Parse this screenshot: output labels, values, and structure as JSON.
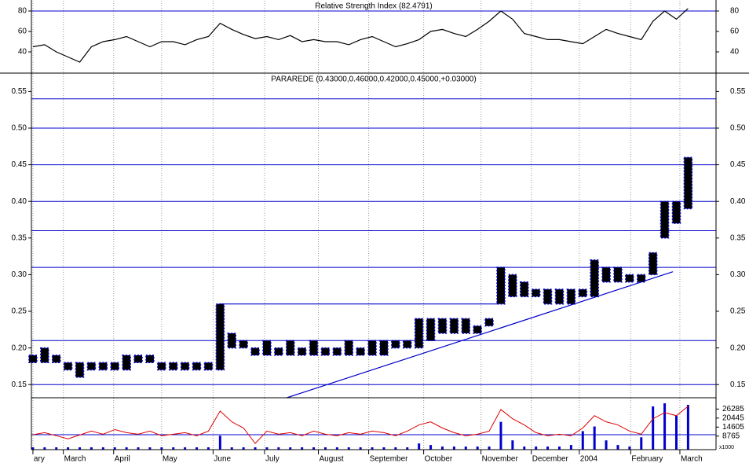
{
  "chart_data": [
    {
      "type": "line",
      "title": "Relative Strength Index (82.4791)",
      "color": "#000000",
      "values": [
        45,
        47,
        40,
        35,
        30,
        45,
        50,
        52,
        55,
        50,
        45,
        50,
        50,
        47,
        52,
        55,
        68,
        62,
        57,
        53,
        55,
        52,
        56,
        50,
        52,
        50,
        50,
        47,
        52,
        55,
        50,
        45,
        48,
        52,
        60,
        62,
        58,
        55,
        62,
        70,
        80,
        72,
        58,
        55,
        52,
        52,
        50,
        48,
        55,
        62,
        58,
        55,
        52,
        70,
        80,
        72,
        82.4791
      ],
      "xlim": [
        -0.13,
        58.39
      ],
      "ylim": [
        20,
        90
      ],
      "yticks": [
        40,
        60,
        80
      ],
      "hlines": [
        80
      ],
      "hline_color": "#0000cc"
    },
    {
      "type": "ohlc",
      "title": "PARAREDE (0.43000,0.46000,0.42000,0.45000,+0.03000)",
      "color": "#0000cc",
      "high": [
        0.19,
        0.2,
        0.19,
        0.18,
        0.18,
        0.18,
        0.18,
        0.18,
        0.19,
        0.19,
        0.19,
        0.18,
        0.18,
        0.18,
        0.18,
        0.18,
        0.26,
        0.22,
        0.21,
        0.2,
        0.21,
        0.2,
        0.21,
        0.2,
        0.21,
        0.2,
        0.2,
        0.21,
        0.2,
        0.21,
        0.21,
        0.21,
        0.21,
        0.24,
        0.24,
        0.24,
        0.24,
        0.24,
        0.23,
        0.24,
        0.31,
        0.3,
        0.29,
        0.28,
        0.28,
        0.28,
        0.28,
        0.28,
        0.32,
        0.31,
        0.31,
        0.3,
        0.3,
        0.33,
        0.4,
        0.4,
        0.46
      ],
      "low": [
        0.18,
        0.18,
        0.18,
        0.17,
        0.16,
        0.17,
        0.17,
        0.17,
        0.17,
        0.18,
        0.18,
        0.17,
        0.17,
        0.17,
        0.17,
        0.17,
        0.17,
        0.2,
        0.2,
        0.19,
        0.19,
        0.19,
        0.19,
        0.19,
        0.19,
        0.19,
        0.19,
        0.19,
        0.19,
        0.19,
        0.19,
        0.2,
        0.2,
        0.2,
        0.21,
        0.22,
        0.22,
        0.22,
        0.22,
        0.23,
        0.26,
        0.27,
        0.27,
        0.27,
        0.26,
        0.26,
        0.26,
        0.27,
        0.27,
        0.29,
        0.29,
        0.29,
        0.29,
        0.3,
        0.35,
        0.37,
        0.39
      ],
      "xlim": [
        -0.13,
        58.39
      ],
      "ylim": [
        0.132,
        0.574
      ],
      "yticks": [
        {
          "value": 0.15,
          "label": "0.15"
        },
        {
          "value": 0.2,
          "label": "0.20"
        },
        {
          "value": 0.25,
          "label": "0.25"
        },
        {
          "value": 0.3,
          "label": "0.30"
        },
        {
          "value": 0.35,
          "label": "0.35"
        },
        {
          "value": 0.4,
          "label": "0.40"
        },
        {
          "value": 0.45,
          "label": "0.45"
        },
        {
          "value": 0.5,
          "label": "0.50"
        },
        {
          "value": 0.55,
          "label": "0.55"
        }
      ],
      "hlines": [
        0.15,
        0.21,
        0.31,
        0.36,
        0.4,
        0.45,
        0.5,
        0.54
      ],
      "hline_color": "#0000cc",
      "trendlines": [
        {
          "x": [
            21.7,
            54.7
          ],
          "y": [
            0.132,
            0.304
          ]
        },
        {
          "x": [
            15.9,
            39.8
          ],
          "y": [
            0.26,
            0.26
          ]
        }
      ]
    },
    {
      "type": "bar",
      "color": "#0000cc",
      "values": [
        1500,
        1500,
        1500,
        1500,
        1500,
        1500,
        1500,
        1500,
        1500,
        1500,
        1500,
        1500,
        1500,
        1500,
        1500,
        1500,
        9000,
        1500,
        1500,
        1500,
        1500,
        1500,
        1500,
        1500,
        1500,
        1500,
        1500,
        1500,
        1500,
        1500,
        1500,
        1500,
        1500,
        4000,
        3000,
        2000,
        2000,
        2000,
        2000,
        2000,
        18000,
        6000,
        2000,
        2000,
        2000,
        2000,
        3000,
        12000,
        15000,
        6000,
        3000,
        2000,
        8000,
        28000,
        30000,
        22000,
        29000
      ],
      "line_values": [
        9700,
        11000,
        9000,
        7000,
        9500,
        12000,
        10000,
        13000,
        11000,
        10000,
        12000,
        9000,
        10000,
        11000,
        9000,
        12000,
        25000,
        18000,
        14000,
        4000,
        12000,
        10000,
        11000,
        9000,
        12000,
        10000,
        9000,
        11000,
        10000,
        12000,
        11000,
        9000,
        12000,
        16000,
        18000,
        14000,
        11000,
        9000,
        10000,
        12000,
        26000,
        20000,
        16000,
        11000,
        9000,
        10000,
        9000,
        14000,
        22000,
        18000,
        16000,
        12000,
        10000,
        20000,
        24000,
        22000,
        28000
      ],
      "line_color": "#dd0000",
      "xlim": [
        -0.13,
        58.39
      ],
      "ylim": [
        0,
        33600
      ],
      "yticks": [
        8765,
        14605,
        20445,
        26285
      ],
      "unit_label": "x1000",
      "hlines": [
        9700
      ],
      "hline_color": "#0000cc",
      "xticks": [
        {
          "value": 0,
          "label": "ary"
        },
        {
          "value": 2.6,
          "label": "March"
        },
        {
          "value": 6.9,
          "label": "April"
        },
        {
          "value": 11,
          "label": "May"
        },
        {
          "value": 15.4,
          "label": "June"
        },
        {
          "value": 19.8,
          "label": "July"
        },
        {
          "value": 24.4,
          "label": "August"
        },
        {
          "value": 28.7,
          "label": "September"
        },
        {
          "value": 33.4,
          "label": "October"
        },
        {
          "value": 38.3,
          "label": "November"
        },
        {
          "value": 42.6,
          "label": "December"
        },
        {
          "value": 46.7,
          "label": "2004"
        },
        {
          "value": 51.1,
          "label": "February"
        },
        {
          "value": 55.3,
          "label": "March"
        }
      ]
    }
  ]
}
